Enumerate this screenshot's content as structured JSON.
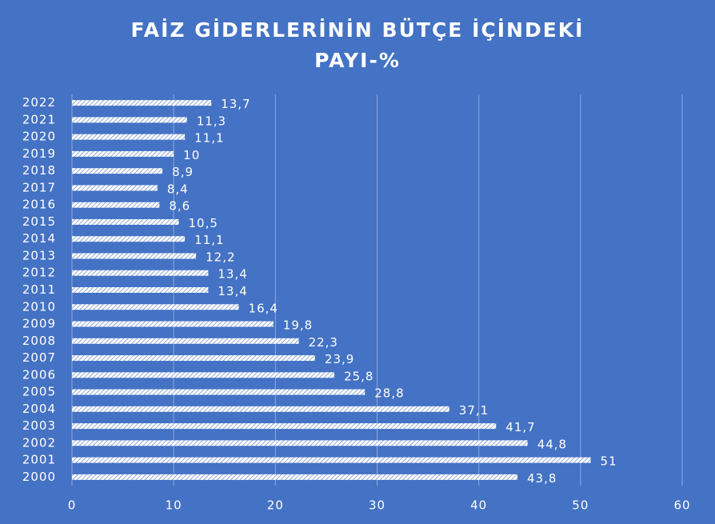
{
  "chart_data": {
    "type": "bar",
    "orientation": "horizontal",
    "title": [
      "FAİZ GİDERLERİNİN  BÜTÇE İÇİNDEKİ",
      "PAYI-%"
    ],
    "categories": [
      "2000",
      "2001",
      "2002",
      "2003",
      "2004",
      "2005",
      "2006",
      "2007",
      "2008",
      "2009",
      "2010",
      "2011",
      "2012",
      "2013",
      "2014",
      "2015",
      "2016",
      "2017",
      "2018",
      "2019",
      "2020",
      "2021",
      "2022"
    ],
    "values": [
      43.8,
      51,
      44.8,
      41.7,
      37.1,
      28.8,
      25.8,
      23.9,
      22.3,
      19.8,
      16.4,
      13.4,
      13.4,
      12.2,
      11.1,
      10.5,
      8.6,
      8.4,
      8.9,
      10,
      11.1,
      11.3,
      13.7
    ],
    "value_labels": [
      "43,8",
      "51",
      "44,8",
      "41,7",
      "37,1",
      "28,8",
      "25,8",
      "23,9",
      "22,3",
      "19,8",
      "16,4",
      "13,4",
      "13,4",
      "12,2",
      "11,1",
      "10,5",
      "8,6",
      "8,4",
      "8,9",
      "10",
      "11,1",
      "11,3",
      "13,7"
    ],
    "color": "#ffffff",
    "xlim": [
      0,
      60
    ],
    "xticks": [
      0,
      10,
      20,
      30,
      40,
      50,
      60
    ],
    "grid": true
  }
}
